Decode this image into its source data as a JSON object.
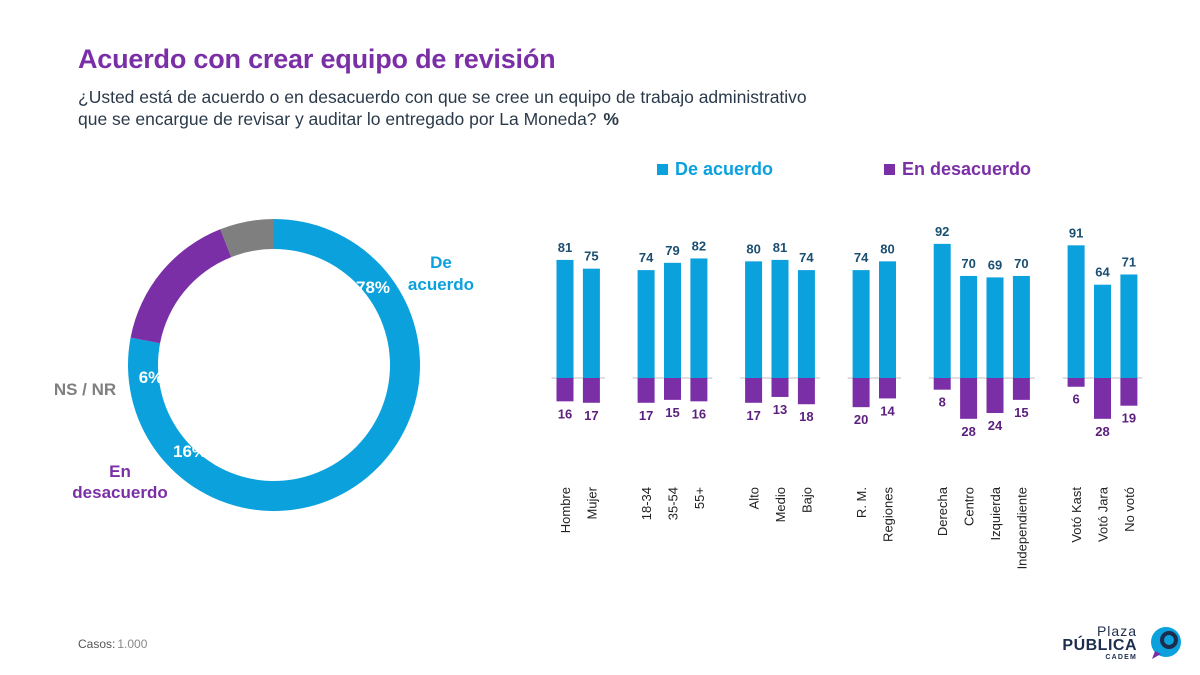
{
  "header": {
    "title": "Acuerdo con crear equipo de revisión",
    "subtitle": "¿Usted está de acuerdo o en desacuerdo con que se cree un equipo de trabajo administrativo que se encargue de revisar y auditar lo entregado por La Moneda?",
    "unit": "%"
  },
  "colors": {
    "acuerdo": "#0ba1dd",
    "desacuerdo": "#7b2fa6",
    "nsnr": "#7f7f7f",
    "title": "#7b2fa6"
  },
  "legend": {
    "acuerdo": "De acuerdo",
    "desacuerdo": "En desacuerdo"
  },
  "chart_data": [
    {
      "type": "pie",
      "style": "donut",
      "slices": [
        {
          "label": "De acuerdo",
          "label_lines": [
            "De",
            "acuerdo"
          ],
          "value": 78,
          "value_label": "78%",
          "color": "#0ba1dd"
        },
        {
          "label": "En desacuerdo",
          "label_lines": [
            "En",
            "desacuerdo"
          ],
          "value": 16,
          "value_label": "16%",
          "color": "#7b2fa6"
        },
        {
          "label": "NS / NR",
          "label_lines": [
            "NS / NR"
          ],
          "value": 6,
          "value_label": "6%",
          "color": "#7f7f7f"
        }
      ]
    },
    {
      "type": "bar",
      "layout": "diverging",
      "ylim": [
        -30,
        100
      ],
      "categories": [
        "Hombre",
        "Mujer",
        "18-34",
        "35-54",
        "55+",
        "Alto",
        "Medio",
        "Bajo",
        "R. M.",
        "Regiones",
        "Derecha",
        "Centro",
        "Izquierda",
        "Independiente",
        "Votó Kast",
        "Votó Jara",
        "No votó"
      ],
      "groups": [
        2,
        3,
        3,
        2,
        4,
        3
      ],
      "series": [
        {
          "name": "De acuerdo",
          "values": [
            81,
            75,
            74,
            79,
            82,
            80,
            81,
            74,
            74,
            80,
            92,
            70,
            69,
            70,
            91,
            64,
            71
          ],
          "color": "#0ba1dd"
        },
        {
          "name": "En desacuerdo",
          "values": [
            16,
            17,
            17,
            15,
            16,
            17,
            13,
            18,
            20,
            14,
            8,
            28,
            24,
            15,
            6,
            28,
            19
          ],
          "color": "#7b2fa6"
        }
      ]
    }
  ],
  "footer": {
    "label": "Casos:",
    "value": "1.000"
  },
  "logo": {
    "line1": "Plaza",
    "line2": "PÚBLICA",
    "line3": "CADEM"
  }
}
